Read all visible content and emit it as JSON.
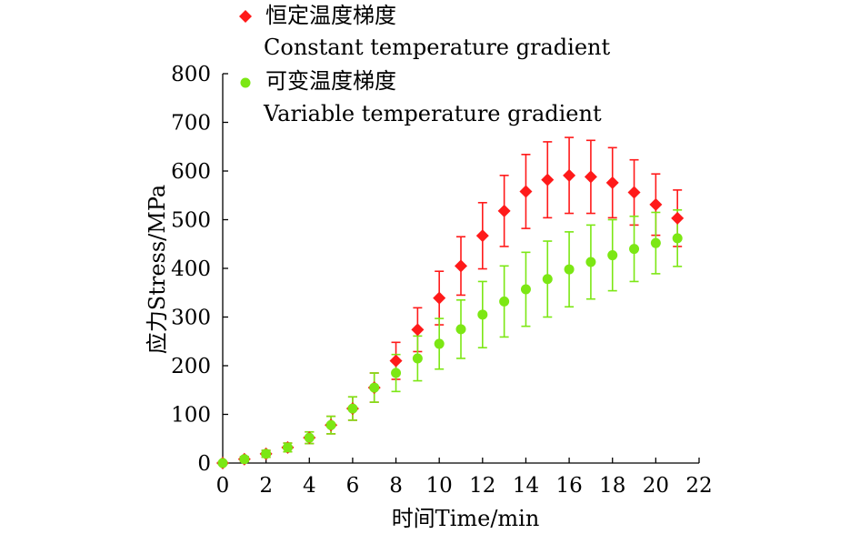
{
  "chart_data": {
    "type": "scatter",
    "xlabel": "时间Time/min",
    "ylabel": "应力Stress/MPa",
    "xlim": [
      0,
      22
    ],
    "ylim": [
      0,
      800
    ],
    "xticks": [
      0,
      2,
      4,
      6,
      8,
      10,
      12,
      14,
      16,
      18,
      20,
      22
    ],
    "yticks": [
      0,
      100,
      200,
      300,
      400,
      500,
      600,
      700,
      800
    ],
    "grid": false,
    "legend_position": "top",
    "series": [
      {
        "name_cn": "恒定温度梯度",
        "name_en": "Constant temperature gradient",
        "marker": "diamond",
        "color": "#ff1a1a",
        "x": [
          0,
          1,
          2,
          3,
          4,
          5,
          6,
          7,
          8,
          9,
          10,
          11,
          12,
          13,
          14,
          15,
          16,
          17,
          18,
          19,
          20,
          21
        ],
        "y": [
          0,
          8,
          19,
          32,
          52,
          78,
          112,
          155,
          210,
          274,
          339,
          405,
          467,
          518,
          558,
          582,
          591,
          588,
          576,
          556,
          531,
          503
        ],
        "err": [
          2,
          5,
          7,
          9,
          12,
          18,
          24,
          30,
          38,
          45,
          55,
          60,
          68,
          73,
          76,
          78,
          78,
          75,
          72,
          67,
          63,
          58
        ]
      },
      {
        "name_cn": "可变温度梯度",
        "name_en": "Variable temperature gradient",
        "marker": "circle",
        "color": "#7ce714",
        "x": [
          0,
          1,
          2,
          3,
          4,
          5,
          6,
          7,
          8,
          9,
          10,
          11,
          12,
          13,
          14,
          15,
          16,
          17,
          18,
          19,
          20,
          21
        ],
        "y": [
          0,
          8,
          19,
          32,
          52,
          78,
          112,
          155,
          185,
          215,
          245,
          275,
          305,
          332,
          357,
          378,
          398,
          413,
          427,
          440,
          452,
          462
        ],
        "err": [
          2,
          5,
          7,
          9,
          12,
          18,
          24,
          30,
          38,
          46,
          52,
          60,
          68,
          73,
          76,
          78,
          77,
          76,
          73,
          67,
          63,
          58
        ]
      }
    ]
  }
}
